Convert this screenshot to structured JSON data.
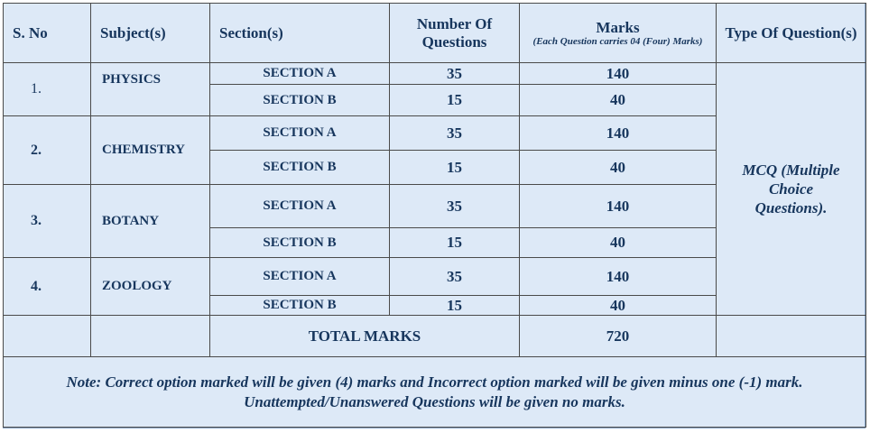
{
  "headers": {
    "sno": "S. No",
    "subject": "Subject(s)",
    "section": "Section(s)",
    "num_questions": "Number Of Questions",
    "marks": "Marks",
    "marks_sub": "(Each Question carries 04 (Four) Marks)",
    "type": "Type Of Question(s)"
  },
  "subjects": [
    {
      "sno": "1.",
      "name": "PHYSICS",
      "sections": [
        {
          "name": "SECTION A",
          "questions": "35",
          "marks": "140"
        },
        {
          "name": "SECTION B",
          "questions": "15",
          "marks": "40"
        }
      ]
    },
    {
      "sno": "2.",
      "name": "CHEMISTRY",
      "sections": [
        {
          "name": "SECTION A",
          "questions": "35",
          "marks": "140"
        },
        {
          "name": "SECTION B",
          "questions": "15",
          "marks": "40"
        }
      ]
    },
    {
      "sno": "3.",
      "name": "BOTANY",
      "sections": [
        {
          "name": "SECTION A",
          "questions": "35",
          "marks": "140"
        },
        {
          "name": "SECTION B",
          "questions": "15",
          "marks": "40"
        }
      ]
    },
    {
      "sno": "4.",
      "name": "ZOOLOGY",
      "sections": [
        {
          "name": "SECTION A",
          "questions": "35",
          "marks": "140"
        },
        {
          "name": "SECTION B",
          "questions": "15",
          "marks": "40"
        }
      ]
    }
  ],
  "question_type": "MCQ (Multiple Choice Questions).",
  "total": {
    "label": "TOTAL MARKS",
    "value": "720"
  },
  "note": "Note: Correct option marked will be given (4) marks and Incorrect option marked will be given minus one (-1) mark. Unattempted/Unanswered Questions will be given no marks."
}
